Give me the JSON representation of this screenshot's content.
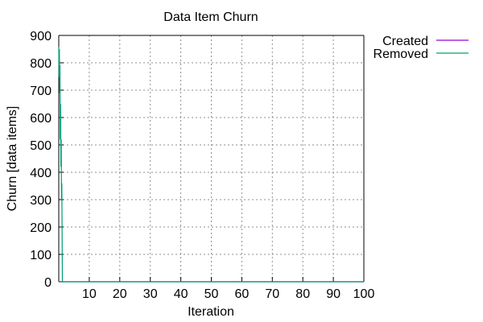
{
  "chart_data": {
    "type": "line",
    "title": "Data Item Churn",
    "xlabel": "Iteration",
    "ylabel": "Churn [data items]",
    "xlim": [
      0,
      100
    ],
    "ylim": [
      0,
      900
    ],
    "x_ticks": [
      10,
      20,
      30,
      40,
      50,
      60,
      70,
      80,
      90,
      100
    ],
    "y_ticks": [
      0,
      100,
      200,
      300,
      400,
      500,
      600,
      700,
      800,
      900
    ],
    "grid": true,
    "legend_position": "top-right outside",
    "series": [
      {
        "name": "Created",
        "color": "#9400d3",
        "points": [
          [
            0,
            0
          ],
          [
            1,
            0
          ],
          [
            100,
            0
          ]
        ]
      },
      {
        "name": "Removed",
        "color": "#009e73",
        "points": [
          [
            0,
            858
          ],
          [
            0.1,
            748
          ],
          [
            0.2,
            850
          ],
          [
            0.3,
            690
          ],
          [
            0.4,
            792
          ],
          [
            0.5,
            520
          ],
          [
            0.6,
            650
          ],
          [
            0.7,
            420
          ],
          [
            0.8,
            520
          ],
          [
            0.9,
            300
          ],
          [
            1.0,
            360
          ],
          [
            1.2,
            0
          ],
          [
            100,
            0
          ]
        ]
      }
    ]
  }
}
